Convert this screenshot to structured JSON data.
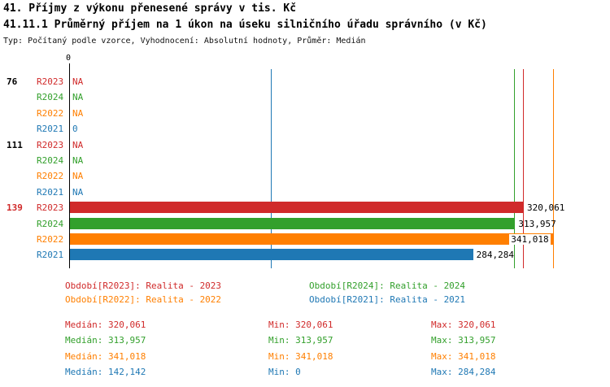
{
  "page": {
    "title": "41. Příjmy z výkonu přenesené správy v tis. Kč",
    "subtitle": "41.11.1 Průměrný příjem na 1 úkon na úseku silničního úřadu správního (v Kč)",
    "meta": "Typ: Počítaný podle vzorce, Vyhodnocení: Absolutní hodnoty, Průměr: Medián"
  },
  "colors": {
    "R2023": "#d02a2a",
    "R2024": "#33a02c",
    "R2022": "#ff7f00",
    "R2021": "#1f78b4",
    "emphasis": "#d02a2a",
    "axis": "#000000",
    "value_text": "#000000"
  },
  "chart_data": {
    "type": "bar",
    "orientation": "horizontal",
    "title": "41.11.1 Průměrný příjem na 1 úkon na úseku silničního úřadu správního (v Kč)",
    "xlabel": "",
    "ylabel": "",
    "xlim": [
      0,
      347000
    ],
    "x_zero_label": "0",
    "grid": false,
    "legend_position": "bottom",
    "categories": [
      "76",
      "111",
      "139"
    ],
    "series_order": [
      "R2023",
      "R2024",
      "R2022",
      "R2021"
    ],
    "groups": [
      {
        "label": "76",
        "emphasis": false,
        "rows": [
          {
            "series": "R2023",
            "value": null,
            "display": "NA"
          },
          {
            "series": "R2024",
            "value": null,
            "display": "NA"
          },
          {
            "series": "R2022",
            "value": null,
            "display": "NA"
          },
          {
            "series": "R2021",
            "value": 0,
            "display": "0"
          }
        ]
      },
      {
        "label": "111",
        "emphasis": false,
        "rows": [
          {
            "series": "R2023",
            "value": null,
            "display": "NA"
          },
          {
            "series": "R2024",
            "value": null,
            "display": "NA"
          },
          {
            "series": "R2022",
            "value": null,
            "display": "NA"
          },
          {
            "series": "R2021",
            "value": null,
            "display": "NA"
          }
        ]
      },
      {
        "label": "139",
        "emphasis": true,
        "rows": [
          {
            "series": "R2023",
            "value": 320061,
            "display": "320,061"
          },
          {
            "series": "R2024",
            "value": 313957,
            "display": "313,957"
          },
          {
            "series": "R2022",
            "value": 341018,
            "display": "341,018"
          },
          {
            "series": "R2021",
            "value": 284284,
            "display": "284,284"
          }
        ]
      }
    ],
    "median_lines": [
      {
        "series": "R2023",
        "value": 320061
      },
      {
        "series": "R2024",
        "value": 313957
      },
      {
        "series": "R2022",
        "value": 341018
      },
      {
        "series": "R2021",
        "value": 142142
      }
    ],
    "legend": [
      {
        "series": "R2023",
        "label": "Období[R2023]: Realita - 2023",
        "column": 0,
        "row": 0
      },
      {
        "series": "R2024",
        "label": "Období[R2024]: Realita - 2024",
        "column": 1,
        "row": 0
      },
      {
        "series": "R2022",
        "label": "Období[R2022]: Realita - 2022",
        "column": 0,
        "row": 1
      },
      {
        "series": "R2021",
        "label": "Období[R2021]: Realita - 2021",
        "column": 1,
        "row": 1
      }
    ],
    "stats": [
      {
        "series": "R2023",
        "median": "Medián: 320,061",
        "min": "Min: 320,061",
        "max": "Max: 320,061"
      },
      {
        "series": "R2024",
        "median": "Medián: 313,957",
        "min": "Min: 313,957",
        "max": "Max: 313,957"
      },
      {
        "series": "R2022",
        "median": "Medián: 341,018",
        "min": "Min: 341,018",
        "max": "Max: 341,018"
      },
      {
        "series": "R2021",
        "median": "Medián: 142,142",
        "min": "Min: 0",
        "max": "Max: 284,284"
      }
    ]
  }
}
